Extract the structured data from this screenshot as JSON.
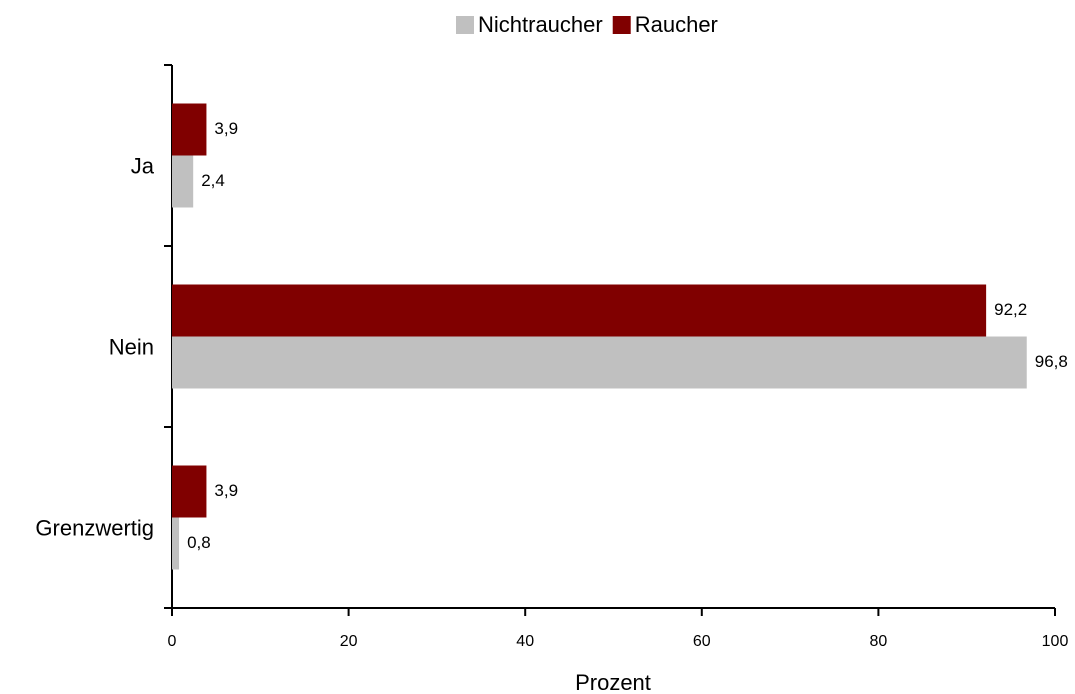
{
  "chart_data": {
    "type": "bar",
    "orientation": "horizontal",
    "categories": [
      "Ja",
      "Nein",
      "Grenzwertig"
    ],
    "series": [
      {
        "name": "Nichtraucher",
        "color": "#c0c0c0",
        "values": [
          2.4,
          96.8,
          0.8
        ],
        "value_labels": [
          "2,4",
          "96,8",
          "0,8"
        ]
      },
      {
        "name": "Raucher",
        "color": "#800000",
        "values": [
          3.9,
          92.2,
          3.9
        ],
        "value_labels": [
          "3,9",
          "92,2",
          "3,9"
        ]
      }
    ],
    "x_label": "Prozent",
    "xlim": [
      0,
      100
    ],
    "xticks": [
      0,
      20,
      40,
      60,
      80,
      100
    ],
    "grid": false,
    "legend": "top"
  }
}
